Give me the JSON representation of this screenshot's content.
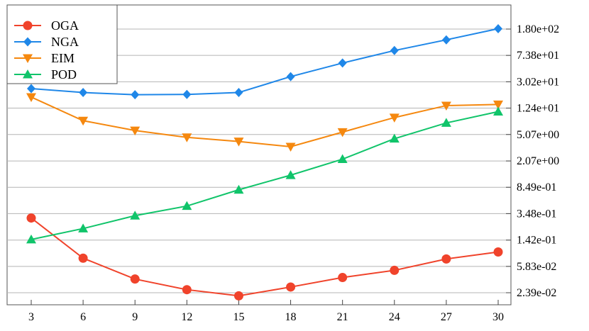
{
  "chart_data": {
    "type": "line",
    "title": "",
    "xlabel": "",
    "ylabel": "",
    "y_scale": "log",
    "y_axis_side": "right",
    "grid": "horizontal",
    "legend_position": "top-left",
    "x": [
      3,
      6,
      9,
      12,
      15,
      18,
      21,
      24,
      27,
      30
    ],
    "y_ticks": [
      {
        "value": 0.0239,
        "label": "2.39e-02"
      },
      {
        "value": 0.0583,
        "label": "5.83e-02"
      },
      {
        "value": 0.142,
        "label": "1.42e-01"
      },
      {
        "value": 0.348,
        "label": "3.48e-01"
      },
      {
        "value": 0.849,
        "label": "8.49e-01"
      },
      {
        "value": 2.07,
        "label": "2.07e+00"
      },
      {
        "value": 5.07,
        "label": "5.07e+00"
      },
      {
        "value": 12.4,
        "label": "1.24e+01"
      },
      {
        "value": 30.2,
        "label": "3.02e+01"
      },
      {
        "value": 73.8,
        "label": "7.38e+01"
      },
      {
        "value": 180,
        "label": "1.80e+02"
      }
    ],
    "series": [
      {
        "name": "OGA",
        "color": "#f0432b",
        "marker": "circle",
        "values": [
          0.3,
          0.077,
          0.038,
          0.0265,
          0.0215,
          0.029,
          0.04,
          0.051,
          0.075,
          0.095
        ]
      },
      {
        "name": "NGA",
        "color": "#1f87e8",
        "marker": "diamond",
        "values": [
          24,
          21,
          19.5,
          19.7,
          21,
          36,
          57,
          87,
          125,
          182
        ]
      },
      {
        "name": "EIM",
        "color": "#f5880f",
        "marker": "triangle-down",
        "values": [
          18,
          8.1,
          5.8,
          4.6,
          4.0,
          3.35,
          5.5,
          9.0,
          13.5,
          14.0
        ]
      },
      {
        "name": "POD",
        "color": "#10c46a",
        "marker": "triangle-up",
        "values": [
          0.145,
          0.21,
          0.325,
          0.45,
          0.78,
          1.28,
          2.2,
          4.4,
          7.5,
          11.0
        ]
      }
    ]
  }
}
